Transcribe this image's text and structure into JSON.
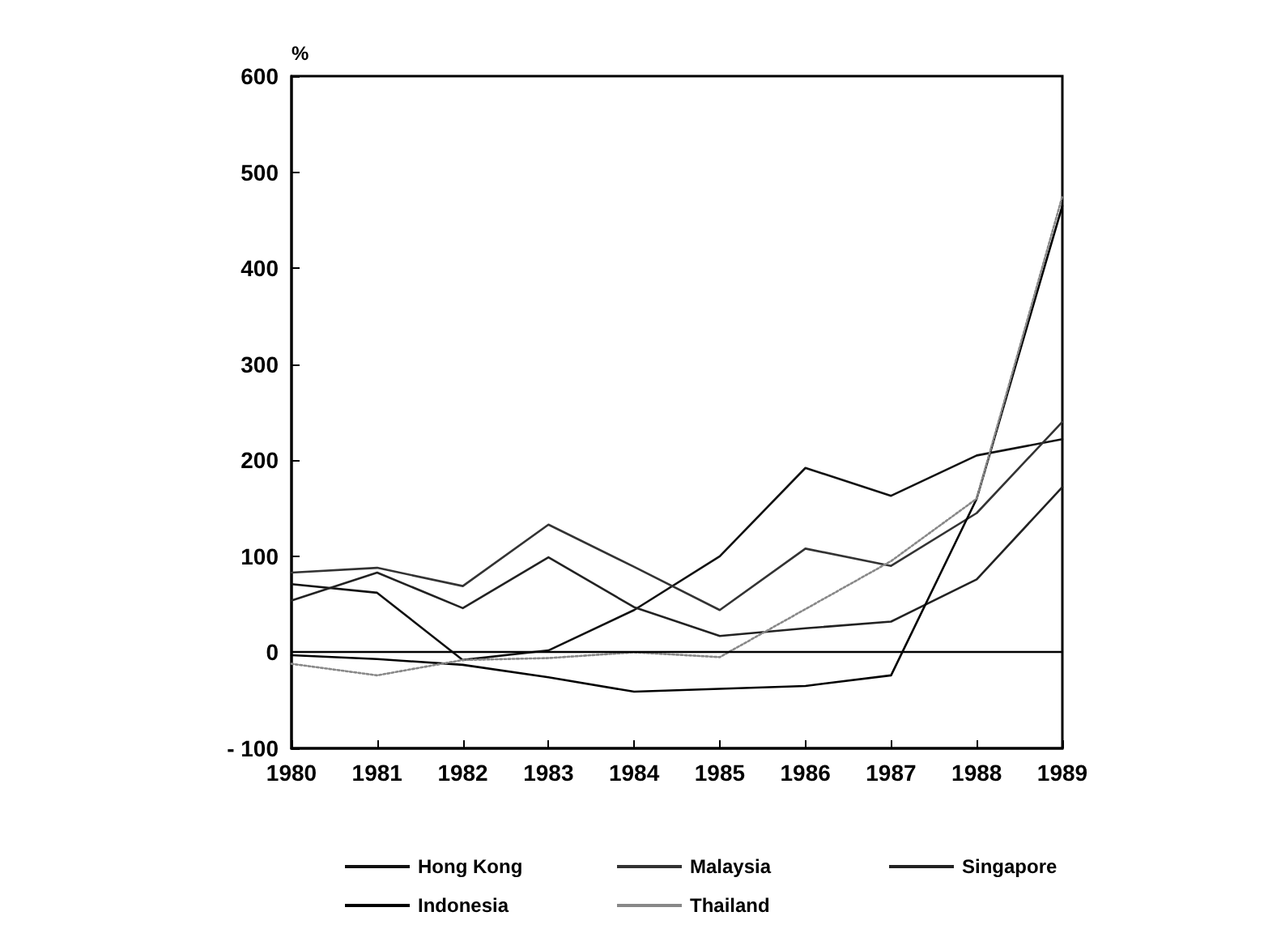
{
  "chart_data": {
    "type": "line",
    "ylabel": "%",
    "categories": [
      "1980",
      "1981",
      "1982",
      "1983",
      "1984",
      "1985",
      "1986",
      "1987",
      "1988",
      "1989"
    ],
    "series": [
      {
        "name": "Hong Kong",
        "color": "#111111",
        "values": [
          71,
          62,
          -8,
          2,
          44,
          100,
          192,
          163,
          205,
          222
        ]
      },
      {
        "name": "Malaysia",
        "color": "#333333",
        "values": [
          83,
          88,
          69,
          133,
          89,
          44,
          108,
          90,
          145,
          240
        ]
      },
      {
        "name": "Singapore",
        "color": "#222222",
        "values": [
          54,
          83,
          46,
          99,
          47,
          17,
          25,
          32,
          76,
          172
        ]
      },
      {
        "name": "Indonesia",
        "color": "#000000",
        "values": [
          -3,
          -7,
          -13,
          -26,
          -41,
          -38,
          -35,
          -24,
          160,
          465
        ]
      },
      {
        "name": "Thailand",
        "color": "#888888",
        "line_style": "dotted",
        "values": [
          -12,
          -24,
          -8,
          -6,
          0,
          -5,
          45,
          95,
          160,
          475
        ]
      }
    ],
    "ylim": [
      -100,
      600
    ],
    "yticks": [
      -100,
      0,
      100,
      200,
      300,
      400,
      500,
      600
    ],
    "grid": false,
    "legend": "bottom",
    "marker": "none",
    "line_style": "solid",
    "ref_lines": [
      {
        "axis": "y",
        "value": 0,
        "color": "#000000"
      }
    ]
  }
}
